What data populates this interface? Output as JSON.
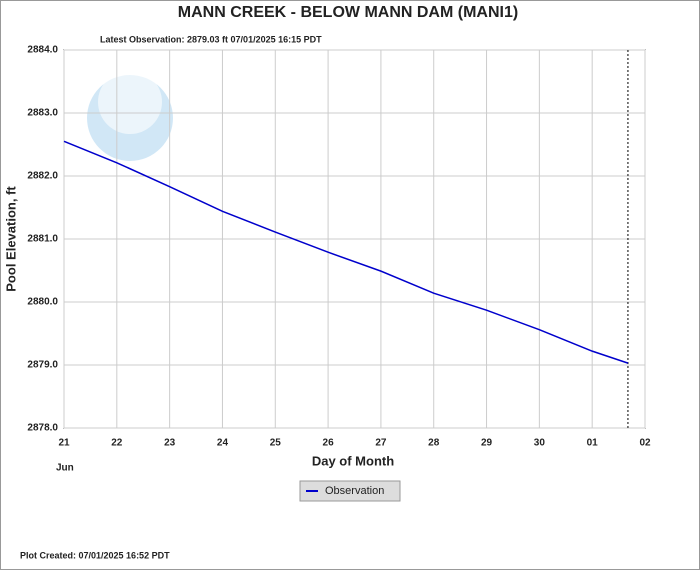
{
  "chart_data": {
    "type": "line",
    "title": "MANN CREEK - BELOW MANN DAM  (MANI1)",
    "subtitle": "Latest Observation: 2879.03 ft 07/01/2025 16:15 PDT",
    "y_label": "Pool Elevation, ft",
    "x_label": "Day of Month",
    "x_sublabel": "Jun",
    "footer": "Plot Created: 07/01/2025 16:52 PDT",
    "x": [
      0,
      1,
      2,
      3,
      4,
      5,
      6,
      7,
      8,
      9,
      10,
      10.677
    ],
    "series": [
      {
        "name": "Observation",
        "color": "#0000cc",
        "values": [
          2882.55,
          2882.21,
          2881.83,
          2881.44,
          2881.11,
          2880.79,
          2880.49,
          2880.14,
          2879.87,
          2879.56,
          2879.22,
          2879.03
        ]
      }
    ],
    "latest_x": 10.677,
    "xlim": [
      0,
      11
    ],
    "xticks": [
      {
        "value": 0,
        "label": "21"
      },
      {
        "value": 1,
        "label": "22"
      },
      {
        "value": 2,
        "label": "23"
      },
      {
        "value": 3,
        "label": "24"
      },
      {
        "value": 4,
        "label": "25"
      },
      {
        "value": 5,
        "label": "26"
      },
      {
        "value": 6,
        "label": "27"
      },
      {
        "value": 7,
        "label": "28"
      },
      {
        "value": 8,
        "label": "29"
      },
      {
        "value": 9,
        "label": "30"
      },
      {
        "value": 10,
        "label": "01"
      },
      {
        "value": 11,
        "label": "02"
      }
    ],
    "ylim": [
      2878,
      2884
    ],
    "yticks": [
      {
        "value": 2878,
        "label": "2878.0"
      },
      {
        "value": 2879,
        "label": "2879.0"
      },
      {
        "value": 2880,
        "label": "2880.0"
      },
      {
        "value": 2881,
        "label": "2881.0"
      },
      {
        "value": 2882,
        "label": "2882.0"
      },
      {
        "value": 2883,
        "label": "2883.0"
      },
      {
        "value": 2884,
        "label": "2884.0"
      }
    ],
    "grid": true
  }
}
